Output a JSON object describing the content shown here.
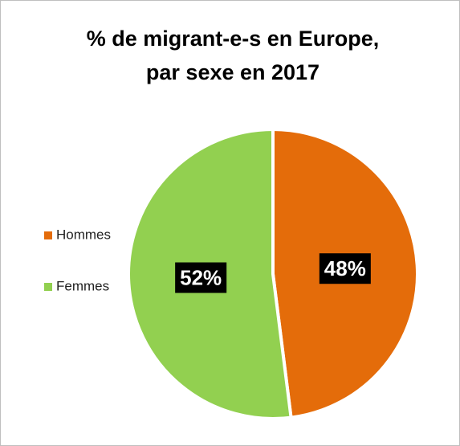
{
  "chart_data": {
    "type": "pie",
    "title": [
      "% de migrant-e-s en Europe,",
      "par sexe en 2017"
    ],
    "categories": [
      "Hommes",
      "Femmes"
    ],
    "values": [
      48,
      52
    ],
    "value_labels": [
      "48%",
      "52%"
    ],
    "colors": [
      "#e46c0a",
      "#92d050"
    ],
    "legend": "left"
  }
}
